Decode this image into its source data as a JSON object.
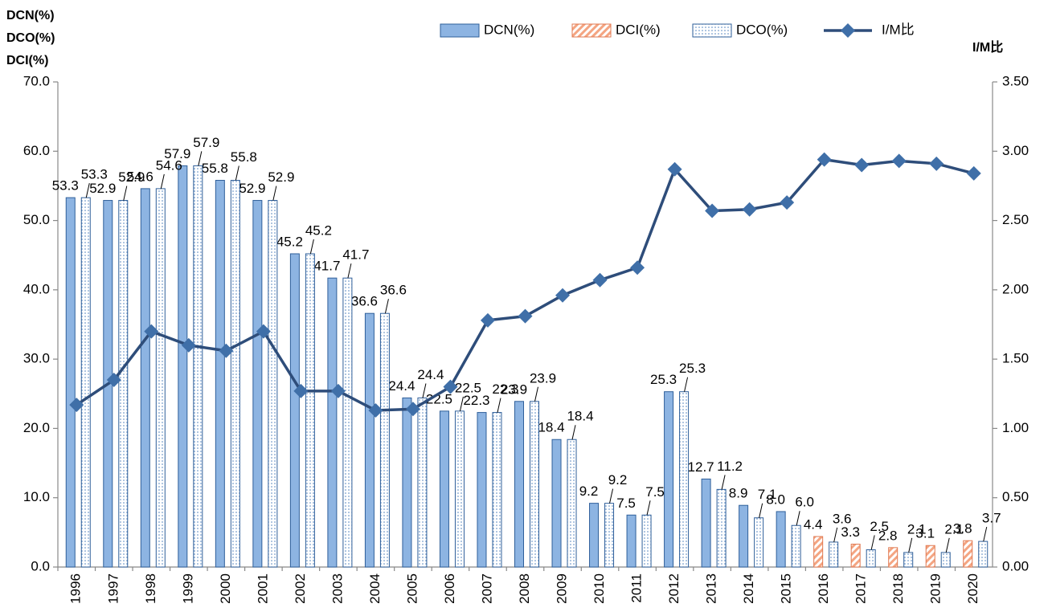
{
  "chart_data": {
    "type": "bar",
    "y_axis_labels": [
      "DCN(%)",
      "DCO(%)",
      "DCI(%)"
    ],
    "y2_axis_label": "I/M比",
    "categories": [
      "1996",
      "1997",
      "1998",
      "1999",
      "2000",
      "2001",
      "2002",
      "2003",
      "2004",
      "2005",
      "2006",
      "2007",
      "2008",
      "2009",
      "2010",
      "2011",
      "2012",
      "2013",
      "2014",
      "2015",
      "2016",
      "2017",
      "2018",
      "2019",
      "2020"
    ],
    "series": [
      {
        "name": "DCN(%)",
        "type": "bar",
        "slot": "left",
        "style": "solid",
        "color": "#8db4e2",
        "values": [
          53.3,
          52.9,
          54.6,
          57.9,
          55.8,
          52.9,
          45.2,
          41.7,
          36.6,
          24.4,
          22.5,
          22.3,
          23.9,
          18.4,
          9.2,
          7.5,
          25.3,
          12.7,
          8.9,
          8.0,
          null,
          null,
          null,
          null,
          null
        ],
        "value_labels": [
          "53.3",
          "52.9",
          "54.6",
          "57.9",
          "55.8",
          "52.9",
          "45.2",
          "41.7",
          "36.6",
          "24.4",
          "22.5",
          "22.3",
          "23.9",
          "18.4",
          "9.2",
          "7.5",
          "25.3",
          "12.7",
          "8.9",
          "8.0",
          null,
          null,
          null,
          null,
          null
        ]
      },
      {
        "name": "DCI(%)",
        "type": "bar",
        "slot": "left",
        "style": "hatch",
        "color": "#f4a582",
        "values": [
          null,
          null,
          null,
          null,
          null,
          null,
          null,
          null,
          null,
          null,
          null,
          null,
          null,
          null,
          null,
          null,
          null,
          null,
          null,
          null,
          4.4,
          3.3,
          2.8,
          3.1,
          3.8
        ],
        "value_labels": [
          null,
          null,
          null,
          null,
          null,
          null,
          null,
          null,
          null,
          null,
          null,
          null,
          null,
          null,
          null,
          null,
          null,
          null,
          null,
          null,
          "4.4",
          "3.3",
          "2.8",
          "3.1",
          "3.8"
        ]
      },
      {
        "name": "DCO(%)",
        "type": "bar",
        "slot": "right",
        "style": "dots",
        "color": "#4f81bd",
        "values": [
          53.3,
          52.9,
          54.6,
          57.9,
          55.8,
          52.9,
          45.2,
          41.7,
          36.6,
          24.4,
          22.5,
          22.3,
          23.9,
          18.4,
          9.2,
          7.5,
          25.3,
          11.2,
          7.1,
          6.0,
          3.6,
          2.5,
          2.1,
          2.1,
          3.7
        ],
        "value_labels": [
          "53.3",
          "52.9",
          "54.6",
          "57.9",
          "55.8",
          "52.9",
          "45.2",
          "41.7",
          "36.6",
          "24.4",
          "22.5",
          "22.3",
          "23.9",
          "18.4",
          "9.2",
          "7.5",
          "25.3",
          "11.2",
          "7.1",
          "6.0",
          "3.6",
          "2.5",
          "2.1",
          "2.1",
          "3.7"
        ]
      },
      {
        "name": "I/M比",
        "type": "line",
        "axis": "y2",
        "color": "#2e4d7a",
        "marker_color": "#3f6fa8",
        "values": [
          1.17,
          1.35,
          1.7,
          1.6,
          1.56,
          1.7,
          1.27,
          1.27,
          1.13,
          1.14,
          1.3,
          1.78,
          1.81,
          1.96,
          2.07,
          2.16,
          2.87,
          2.57,
          2.58,
          2.63,
          2.94,
          2.9,
          2.93,
          2.91,
          2.84
        ]
      }
    ],
    "ylim": [
      0,
      70
    ],
    "yticks": [
      {
        "value": 0,
        "label": "0.0"
      },
      {
        "value": 10,
        "label": "10.0"
      },
      {
        "value": 20,
        "label": "20.0"
      },
      {
        "value": 30,
        "label": "30.0"
      },
      {
        "value": 40,
        "label": "40.0"
      },
      {
        "value": 50,
        "label": "50.0"
      },
      {
        "value": 60,
        "label": "60.0"
      },
      {
        "value": 70,
        "label": "70.0"
      }
    ],
    "y2lim": [
      0,
      3.5
    ],
    "y2ticks": [
      {
        "value": 0,
        "label": "0.00"
      },
      {
        "value": 0.5,
        "label": "0.50"
      },
      {
        "value": 1,
        "label": "1.00"
      },
      {
        "value": 1.5,
        "label": "1.50"
      },
      {
        "value": 2,
        "label": "2.00"
      },
      {
        "value": 2.5,
        "label": "2.50"
      },
      {
        "value": 3,
        "label": "3.00"
      },
      {
        "value": 3.5,
        "label": "3.50"
      }
    ],
    "grid": false,
    "legend": "top"
  }
}
